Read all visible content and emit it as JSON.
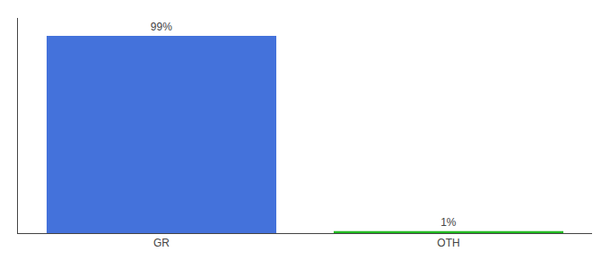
{
  "chart_data": {
    "type": "bar",
    "categories": [
      "GR",
      "OTH"
    ],
    "values": [
      99,
      1
    ],
    "value_labels": [
      "99%",
      "1%"
    ],
    "colors": [
      "#4472db",
      "#22bb22"
    ],
    "ylim": [
      0,
      108
    ],
    "yticks": [],
    "grid": false,
    "data_labels": true,
    "tick_labels": "x"
  }
}
